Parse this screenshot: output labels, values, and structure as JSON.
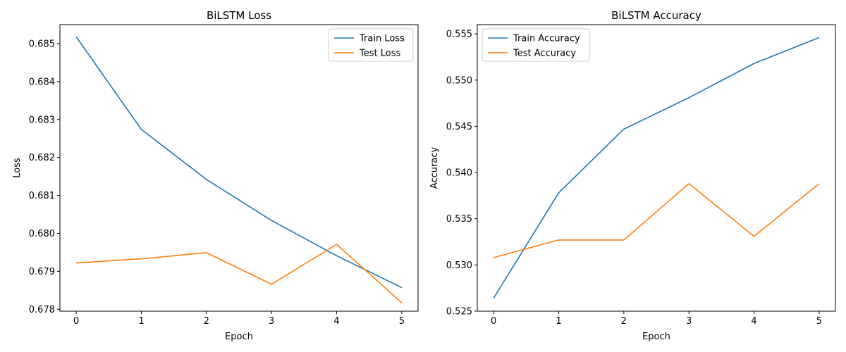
{
  "chart_data": [
    {
      "type": "line",
      "title": "BiLSTM Loss",
      "xlabel": "Epoch",
      "ylabel": "Loss",
      "x": [
        0,
        1,
        2,
        3,
        4,
        5
      ],
      "xlim": [
        -0.25,
        5.25
      ],
      "ylim": [
        0.67795,
        0.6855
      ],
      "xticks": [
        0,
        1,
        2,
        3,
        4,
        5
      ],
      "yticks": [
        0.678,
        0.679,
        0.68,
        0.681,
        0.682,
        0.683,
        0.684,
        0.685
      ],
      "ytick_labels": [
        "0.678",
        "0.679",
        "0.680",
        "0.681",
        "0.682",
        "0.683",
        "0.684",
        "0.685"
      ],
      "grid": false,
      "legend_position": "top-right",
      "series": [
        {
          "name": "Train Loss",
          "color": "#1f77b4",
          "values": [
            0.68518,
            0.68274,
            0.68142,
            0.68034,
            0.67941,
            0.67857
          ]
        },
        {
          "name": "Test Loss",
          "color": "#ff7f0e",
          "values": [
            0.67922,
            0.67933,
            0.67949,
            0.67866,
            0.67971,
            0.67817
          ]
        }
      ]
    },
    {
      "type": "line",
      "title": "BiLSTM Accuracy",
      "xlabel": "Epoch",
      "ylabel": "Accuracy",
      "x": [
        0,
        1,
        2,
        3,
        4,
        5
      ],
      "xlim": [
        -0.25,
        5.25
      ],
      "ylim": [
        0.525,
        0.556
      ],
      "xticks": [
        0,
        1,
        2,
        3,
        4,
        5
      ],
      "yticks": [
        0.525,
        0.53,
        0.535,
        0.54,
        0.545,
        0.55,
        0.555
      ],
      "ytick_labels": [
        "0.525",
        "0.530",
        "0.535",
        "0.540",
        "0.545",
        "0.550",
        "0.555"
      ],
      "grid": false,
      "legend_position": "top-left",
      "series": [
        {
          "name": "Train Accuracy",
          "color": "#1f77b4",
          "values": [
            0.5264,
            0.5378,
            0.5447,
            0.5481,
            0.5518,
            0.5546
          ]
        },
        {
          "name": "Test Accuracy",
          "color": "#ff7f0e",
          "values": [
            0.5308,
            0.5327,
            0.5327,
            0.5388,
            0.5331,
            0.5388
          ]
        }
      ]
    }
  ]
}
